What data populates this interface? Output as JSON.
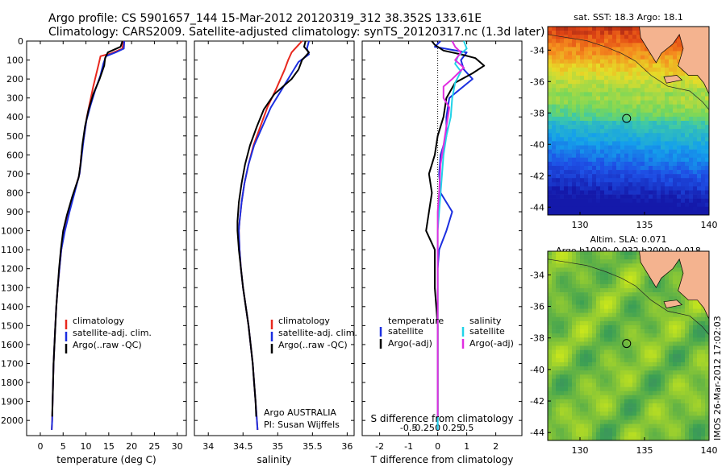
{
  "header": {
    "title_line1": "Argo profile: CS 5901657_144 15-Mar-2012 20120319_312 38.352S 133.61E",
    "title_line2": "Climatology: CARS2009. Satellite-adjusted climatology: synTS_20120317.nc (1.3d later)"
  },
  "colors": {
    "climatology": "#e8281e",
    "satellite": "#1c2fe0",
    "argo": "#000000",
    "satellite_s": "#22d3e8",
    "argo_s": "#e02ee0",
    "land": "#f4b38f"
  },
  "chart_data": [
    {
      "type": "line",
      "name": "temperature-panel",
      "xlabel": "temperature (deg C)",
      "ylabel": "",
      "xlim": [
        -3,
        32
      ],
      "ylim": [
        2080,
        0
      ],
      "xticks": [
        "0",
        "5",
        "10",
        "15",
        "20",
        "25",
        "30"
      ],
      "yticks": [
        "0",
        "100",
        "200",
        "300",
        "400",
        "500",
        "600",
        "700",
        "800",
        "900",
        "1000",
        "1100",
        "1200",
        "1300",
        "1400",
        "1500",
        "1600",
        "1700",
        "1800",
        "1900",
        "2000"
      ],
      "legend": [
        "climatology",
        "satellite-adj. clim.",
        "Argo(..raw -QC)"
      ],
      "series": [
        {
          "name": "climatology",
          "color": "#e8281e",
          "points": [
            [
              18.2,
              0
            ],
            [
              18.0,
              40
            ],
            [
              15.5,
              65
            ],
            [
              13.2,
              80
            ],
            [
              12.8,
              120
            ],
            [
              12.2,
              180
            ],
            [
              11.6,
              240
            ],
            [
              10.9,
              320
            ],
            [
              10.2,
              400
            ],
            [
              9.6,
              500
            ],
            [
              9.0,
              600
            ],
            [
              8.6,
              700
            ],
            [
              7.4,
              800
            ],
            [
              6.3,
              900
            ],
            [
              5.3,
              1000
            ],
            [
              4.6,
              1100
            ],
            [
              4.2,
              1200
            ],
            [
              3.8,
              1300
            ],
            [
              3.5,
              1400
            ],
            [
              3.3,
              1500
            ],
            [
              3.1,
              1600
            ],
            [
              2.9,
              1700
            ],
            [
              2.8,
              1800
            ],
            [
              2.7,
              1900
            ],
            [
              2.6,
              2000
            ],
            [
              2.5,
              2050
            ]
          ]
        },
        {
          "name": "satellite-adj. clim.",
          "color": "#1c2fe0",
          "points": [
            [
              18.4,
              0
            ],
            [
              18.3,
              40
            ],
            [
              16.5,
              60
            ],
            [
              14.4,
              80
            ],
            [
              13.8,
              120
            ],
            [
              13.2,
              180
            ],
            [
              12.0,
              260
            ],
            [
              11.0,
              340
            ],
            [
              10.1,
              420
            ],
            [
              9.5,
              520
            ],
            [
              9.0,
              620
            ],
            [
              8.6,
              700
            ],
            [
              7.5,
              800
            ],
            [
              6.4,
              900
            ],
            [
              5.4,
              1000
            ],
            [
              4.6,
              1100
            ],
            [
              4.2,
              1200
            ],
            [
              3.8,
              1300
            ],
            [
              3.5,
              1400
            ],
            [
              3.3,
              1500
            ],
            [
              3.1,
              1600
            ],
            [
              2.9,
              1700
            ],
            [
              2.8,
              1800
            ],
            [
              2.7,
              1900
            ],
            [
              2.6,
              2000
            ],
            [
              2.5,
              2050
            ]
          ]
        },
        {
          "name": "Argo(..raw -QC)",
          "color": "#000000",
          "points": [
            [
              18.0,
              0
            ],
            [
              17.6,
              30
            ],
            [
              14.8,
              60
            ],
            [
              14.2,
              90
            ],
            [
              14.0,
              130
            ],
            [
              13.0,
              200
            ],
            [
              11.6,
              280
            ],
            [
              10.6,
              360
            ],
            [
              9.8,
              450
            ],
            [
              9.2,
              550
            ],
            [
              8.8,
              650
            ],
            [
              8.4,
              720
            ],
            [
              7.0,
              820
            ],
            [
              5.8,
              920
            ],
            [
              5.0,
              1000
            ],
            [
              4.5,
              1100
            ],
            [
              4.1,
              1200
            ],
            [
              3.8,
              1300
            ],
            [
              3.5,
              1400
            ],
            [
              3.3,
              1500
            ],
            [
              3.1,
              1600
            ],
            [
              2.9,
              1700
            ],
            [
              2.8,
              1800
            ],
            [
              2.7,
              1900
            ],
            [
              2.6,
              1980
            ]
          ]
        }
      ]
    },
    {
      "type": "line",
      "name": "salinity-panel",
      "xlabel": "salinity",
      "xlim": [
        33.8,
        36.1
      ],
      "ylim": [
        2080,
        0
      ],
      "xticks": [
        "34",
        "34.5",
        "35",
        "35.5",
        "36"
      ],
      "legend": [
        "climatology",
        "satellite-adj. clim.",
        "Argo(..raw -QC)"
      ],
      "annotation": [
        "Argo AUSTRALIA",
        "PI: Susan Wijffels"
      ],
      "series": [
        {
          "name": "climatology",
          "color": "#e8281e",
          "points": [
            [
              35.35,
              0
            ],
            [
              35.3,
              20
            ],
            [
              35.2,
              60
            ],
            [
              35.15,
              100
            ],
            [
              35.1,
              150
            ],
            [
              34.98,
              250
            ],
            [
              34.85,
              350
            ],
            [
              34.75,
              450
            ],
            [
              34.65,
              550
            ],
            [
              34.58,
              650
            ],
            [
              34.52,
              750
            ],
            [
              34.48,
              850
            ],
            [
              34.45,
              950
            ],
            [
              34.44,
              1000
            ],
            [
              34.45,
              1100
            ],
            [
              34.47,
              1200
            ],
            [
              34.5,
              1300
            ],
            [
              34.54,
              1400
            ],
            [
              34.58,
              1500
            ],
            [
              34.61,
              1600
            ],
            [
              34.64,
              1700
            ],
            [
              34.66,
              1800
            ],
            [
              34.68,
              1900
            ],
            [
              34.7,
              2000
            ],
            [
              34.71,
              2050
            ]
          ]
        },
        {
          "name": "satellite-adj. clim.",
          "color": "#1c2fe0",
          "points": [
            [
              35.45,
              0
            ],
            [
              35.42,
              40
            ],
            [
              35.45,
              70
            ],
            [
              35.3,
              110
            ],
            [
              35.2,
              170
            ],
            [
              35.05,
              260
            ],
            [
              34.9,
              350
            ],
            [
              34.78,
              450
            ],
            [
              34.66,
              550
            ],
            [
              34.58,
              650
            ],
            [
              34.52,
              750
            ],
            [
              34.48,
              850
            ],
            [
              34.45,
              950
            ],
            [
              34.44,
              1000
            ],
            [
              34.45,
              1100
            ],
            [
              34.47,
              1200
            ],
            [
              34.5,
              1300
            ],
            [
              34.54,
              1400
            ],
            [
              34.58,
              1500
            ],
            [
              34.61,
              1600
            ],
            [
              34.64,
              1700
            ],
            [
              34.66,
              1800
            ],
            [
              34.68,
              1900
            ],
            [
              34.7,
              2000
            ],
            [
              34.71,
              2050
            ]
          ]
        },
        {
          "name": "Argo(..raw -QC)",
          "color": "#000000",
          "points": [
            [
              35.4,
              0
            ],
            [
              35.38,
              30
            ],
            [
              35.45,
              60
            ],
            [
              35.35,
              100
            ],
            [
              35.3,
              150
            ],
            [
              35.2,
              200
            ],
            [
              34.95,
              280
            ],
            [
              34.8,
              360
            ],
            [
              34.7,
              450
            ],
            [
              34.6,
              550
            ],
            [
              34.53,
              650
            ],
            [
              34.48,
              750
            ],
            [
              34.44,
              850
            ],
            [
              34.42,
              950
            ],
            [
              34.42,
              1000
            ],
            [
              34.44,
              1100
            ],
            [
              34.47,
              1200
            ],
            [
              34.5,
              1300
            ],
            [
              34.54,
              1400
            ],
            [
              34.58,
              1500
            ],
            [
              34.61,
              1600
            ],
            [
              34.64,
              1700
            ],
            [
              34.66,
              1800
            ],
            [
              34.68,
              1900
            ],
            [
              34.69,
              1980
            ]
          ]
        }
      ]
    },
    {
      "type": "line",
      "name": "difference-panel",
      "xlabel": "T difference from climatology",
      "xlabel_top": "S difference from climatology",
      "xlim": [
        -2.6,
        2.9
      ],
      "ylim": [
        2080,
        0
      ],
      "xticks": [
        "-2",
        "-1",
        "0",
        "1",
        "2"
      ],
      "s_ticks": [
        "-0.5",
        "-0.25",
        "0",
        "0.25",
        "0.5"
      ],
      "legend_left": {
        "title": "temperature",
        "items": [
          "satellite",
          "Argo(-adj)"
        ]
      },
      "legend_right": {
        "title": "salinity",
        "items": [
          "satellite",
          "Argo(-adj)"
        ]
      },
      "series": [
        {
          "name": "temperature satellite",
          "color": "#1c2fe0",
          "points": [
            [
              0.1,
              0
            ],
            [
              -0.1,
              30
            ],
            [
              1.0,
              60
            ],
            [
              0.8,
              100
            ],
            [
              0.9,
              150
            ],
            [
              1.2,
              200
            ],
            [
              0.4,
              300
            ],
            [
              0.3,
              400
            ],
            [
              0.3,
              500
            ],
            [
              0.1,
              600
            ],
            [
              0.05,
              700
            ],
            [
              0.1,
              800
            ],
            [
              0.5,
              900
            ],
            [
              0.3,
              1000
            ],
            [
              0.05,
              1100
            ],
            [
              0.0,
              1200
            ],
            [
              0.0,
              1300
            ],
            [
              0.0,
              1400
            ],
            [
              0.0,
              2050
            ]
          ]
        },
        {
          "name": "temperature Argo(-adj)",
          "color": "#000000",
          "points": [
            [
              -0.2,
              0
            ],
            [
              -0.1,
              20
            ],
            [
              0.2,
              50
            ],
            [
              0.8,
              70
            ],
            [
              1.3,
              90
            ],
            [
              1.6,
              130
            ],
            [
              1.2,
              170
            ],
            [
              0.6,
              220
            ],
            [
              0.3,
              300
            ],
            [
              0.2,
              400
            ],
            [
              0.0,
              500
            ],
            [
              -0.1,
              600
            ],
            [
              -0.3,
              700
            ],
            [
              -0.2,
              800
            ],
            [
              -0.3,
              900
            ],
            [
              -0.4,
              1000
            ],
            [
              -0.1,
              1100
            ],
            [
              -0.1,
              1200
            ],
            [
              -0.1,
              1300
            ],
            [
              -0.05,
              1400
            ],
            [
              0.0,
              1500
            ],
            [
              0.0,
              1980
            ]
          ]
        },
        {
          "name": "salinity satellite",
          "color": "#22d3e8",
          "points": [
            [
              0.9,
              0
            ],
            [
              1.0,
              40
            ],
            [
              0.7,
              80
            ],
            [
              0.6,
              120
            ],
            [
              0.8,
              160
            ],
            [
              0.6,
              220
            ],
            [
              0.5,
              300
            ],
            [
              0.45,
              400
            ],
            [
              0.3,
              500
            ],
            [
              0.2,
              600
            ],
            [
              0.15,
              700
            ],
            [
              0.1,
              800
            ],
            [
              0.05,
              900
            ],
            [
              0.0,
              1000
            ],
            [
              0.0,
              2050
            ]
          ]
        },
        {
          "name": "salinity Argo(-adj)",
          "color": "#e02ee0",
          "points": [
            [
              0.5,
              0
            ],
            [
              0.6,
              30
            ],
            [
              0.8,
              60
            ],
            [
              0.6,
              100
            ],
            [
              0.9,
              140
            ],
            [
              0.5,
              200
            ],
            [
              0.2,
              240
            ],
            [
              0.2,
              300
            ],
            [
              0.4,
              350
            ],
            [
              0.3,
              450
            ],
            [
              0.2,
              550
            ],
            [
              0.1,
              650
            ],
            [
              0.05,
              800
            ],
            [
              0.0,
              900
            ],
            [
              0.0,
              1980
            ]
          ]
        }
      ]
    },
    {
      "type": "heatmap",
      "name": "sst-map",
      "title": "sat. SST: 18.3 Argo: 18.1",
      "xlim": [
        127.5,
        140
      ],
      "ylim": [
        -44.5,
        -32.5
      ],
      "xticks": [
        "130",
        "135",
        "140"
      ],
      "yticks": [
        "-34",
        "-36",
        "-38",
        "-40",
        "-42",
        "-44"
      ],
      "marker": {
        "lon": 133.61,
        "lat": -38.352
      }
    },
    {
      "type": "heatmap",
      "name": "sla-map",
      "title_line1": "Altim. SLA: 0.071",
      "title_line2": "Argo h1000: 0.032 h2000: 0.018",
      "xlim": [
        127.5,
        140
      ],
      "ylim": [
        -44.5,
        -32.5
      ],
      "xticks": [
        "130",
        "135",
        "140"
      ],
      "yticks": [
        "-34",
        "-36",
        "-38",
        "-40",
        "-42",
        "-44"
      ],
      "marker": {
        "lon": 133.61,
        "lat": -38.352
      }
    }
  ],
  "footer": {
    "stamp": "IMOS 26-Mar-2012 17:02:03"
  }
}
